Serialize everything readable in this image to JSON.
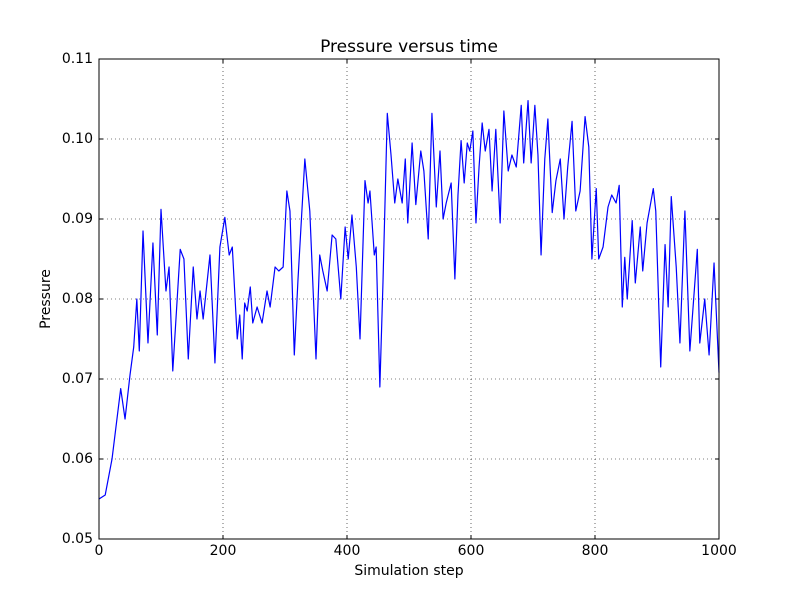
{
  "chart_data": {
    "type": "line",
    "title": "Pressure versus time",
    "x_label": "Simulation step",
    "y_label": "Pressure",
    "xlim": [
      0,
      1000
    ],
    "ylim": [
      0.05,
      0.11
    ],
    "xticks": [
      0,
      200,
      400,
      600,
      800,
      1000
    ],
    "yticks": [
      0.05,
      0.06,
      0.07,
      0.08,
      0.09,
      {
        "value": 0.1,
        "label": "0.10"
      },
      0.11
    ],
    "grid": true,
    "series": [
      {
        "name": "Pressure",
        "color": "#0000ff",
        "x": [
          0,
          10,
          21,
          35,
          42,
          50,
          56,
          61,
          65,
          71,
          79,
          87,
          94,
          100,
          108,
          113,
          119,
          131,
          137,
          144,
          152,
          158,
          163,
          168,
          179,
          187,
          195,
          203,
          210,
          215,
          223,
          227,
          231,
          235,
          239,
          244,
          248,
          255,
          263,
          271,
          276,
          284,
          290,
          297,
          303,
          308,
          315,
          321,
          332,
          340,
          350,
          356,
          361,
          368,
          376,
          382,
          390,
          397,
          402,
          408,
          415,
          421,
          429,
          434,
          437,
          444,
          447,
          453,
          458,
          465,
          471,
          477,
          482,
          489,
          494,
          498,
          505,
          511,
          519,
          524,
          531,
          537,
          544,
          550,
          555,
          560,
          568,
          574,
          579,
          584,
          589,
          594,
          598,
          603,
          608,
          613,
          618,
          623,
          629,
          634,
          640,
          647,
          653,
          660,
          666,
          673,
          681,
          685,
          692,
          697,
          703,
          708,
          713,
          719,
          724,
          731,
          737,
          744,
          750,
          756,
          763,
          769,
          776,
          784,
          790,
          795,
          802,
          806,
          813,
          821,
          827,
          834,
          839,
          844,
          848,
          852,
          860,
          865,
          873,
          877,
          884,
          894,
          898,
          906,
          913,
          918,
          923,
          931,
          937,
          945,
          953,
          965,
          969,
          977,
          984,
          992,
          1000
        ],
        "values": [
          0.055,
          0.0555,
          0.06,
          0.0688,
          0.065,
          0.0705,
          0.074,
          0.08,
          0.0735,
          0.0885,
          0.0745,
          0.087,
          0.0755,
          0.0912,
          0.081,
          0.084,
          0.071,
          0.0862,
          0.085,
          0.0725,
          0.084,
          0.0775,
          0.081,
          0.0775,
          0.0855,
          0.072,
          0.0865,
          0.0902,
          0.0855,
          0.0865,
          0.075,
          0.078,
          0.0725,
          0.0795,
          0.0785,
          0.0815,
          0.077,
          0.079,
          0.077,
          0.081,
          0.079,
          0.084,
          0.0835,
          0.084,
          0.0935,
          0.091,
          0.073,
          0.0825,
          0.0975,
          0.091,
          0.0725,
          0.0855,
          0.0835,
          0.081,
          0.088,
          0.0875,
          0.08,
          0.089,
          0.085,
          0.0905,
          0.084,
          0.075,
          0.0948,
          0.092,
          0.0935,
          0.0855,
          0.0865,
          0.069,
          0.082,
          0.1032,
          0.098,
          0.092,
          0.095,
          0.092,
          0.0975,
          0.0895,
          0.0995,
          0.0918,
          0.0985,
          0.096,
          0.0875,
          0.1032,
          0.0915,
          0.0985,
          0.09,
          0.092,
          0.0945,
          0.0825,
          0.093,
          0.0998,
          0.0945,
          0.0995,
          0.0985,
          0.101,
          0.0895,
          0.0965,
          0.102,
          0.0985,
          0.1012,
          0.0935,
          0.1012,
          0.0895,
          0.1035,
          0.096,
          0.098,
          0.0965,
          0.1042,
          0.097,
          0.1048,
          0.097,
          0.1042,
          0.098,
          0.0855,
          0.0975,
          0.1025,
          0.0908,
          0.0948,
          0.0975,
          0.09,
          0.0965,
          0.1022,
          0.091,
          0.0935,
          0.1028,
          0.099,
          0.085,
          0.0938,
          0.085,
          0.0865,
          0.0915,
          0.093,
          0.092,
          0.0942,
          0.079,
          0.0852,
          0.08,
          0.0898,
          0.082,
          0.089,
          0.0835,
          0.0895,
          0.0938,
          0.091,
          0.0715,
          0.0868,
          0.079,
          0.0928,
          0.084,
          0.0745,
          0.091,
          0.0735,
          0.0862,
          0.0745,
          0.08,
          0.073,
          0.0845,
          0.0708
        ]
      }
    ]
  }
}
